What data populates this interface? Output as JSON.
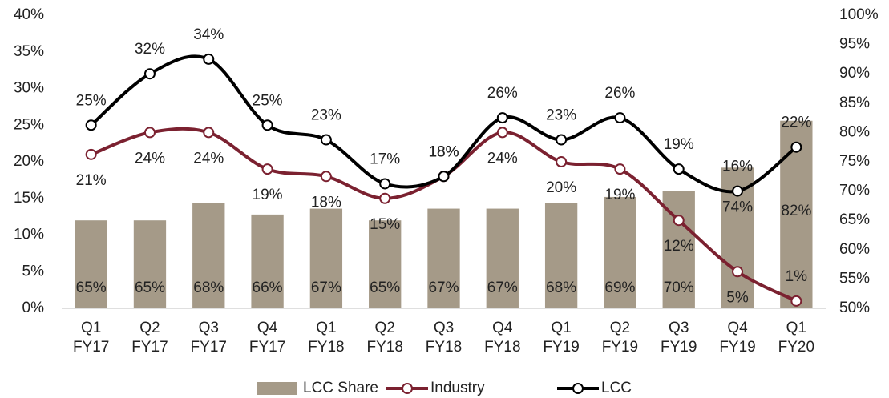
{
  "chart_data": {
    "type": "combo",
    "categories": [
      "Q1 FY17",
      "Q2 FY17",
      "Q3 FY17",
      "Q4 FY17",
      "Q1 FY18",
      "Q2 FY18",
      "Q3 FY18",
      "Q4 FY18",
      "Q1 FY19",
      "Q2 FY19",
      "Q3 FY19",
      "Q4 FY19",
      "Q1 FY20"
    ],
    "series": [
      {
        "name": "LCC Share",
        "type": "bar",
        "axis": "y2",
        "color": "#a59a88",
        "values": [
          65,
          65,
          68,
          66,
          67,
          65,
          67,
          67,
          68,
          69,
          70,
          74,
          82
        ],
        "value_labels": [
          "65%",
          "65%",
          "68%",
          "66%",
          "67%",
          "65%",
          "67%",
          "67%",
          "68%",
          "69%",
          "70%",
          "74%",
          "82%"
        ]
      },
      {
        "name": "Industry",
        "type": "line",
        "color": "#7b2130",
        "values": [
          21,
          24,
          24,
          19,
          18,
          15,
          18,
          24,
          20,
          19,
          12,
          5,
          1
        ],
        "value_labels": [
          "21%",
          "24%",
          "24%",
          "19%",
          "18%",
          "15%",
          "18%",
          "24%",
          "20%",
          "19%",
          "12%",
          "5%",
          "1%"
        ]
      },
      {
        "name": "LCC",
        "type": "line",
        "color": "#000000",
        "values": [
          25,
          32,
          34,
          25,
          23,
          17,
          18,
          26,
          23,
          26,
          19,
          16,
          22
        ],
        "value_labels": [
          "25%",
          "32%",
          "34%",
          "25%",
          "23%",
          "17%",
          "18%",
          "26%",
          "23%",
          "26%",
          "19%",
          "16%",
          "22%"
        ]
      }
    ],
    "ylim": [
      0,
      40
    ],
    "yticks": [
      {
        "value": 0,
        "label": "0%"
      },
      {
        "value": 5,
        "label": "5%"
      },
      {
        "value": 10,
        "label": "10%"
      },
      {
        "value": 15,
        "label": "15%"
      },
      {
        "value": 20,
        "label": "20%"
      },
      {
        "value": 25,
        "label": "25%"
      },
      {
        "value": 30,
        "label": "30%"
      },
      {
        "value": 35,
        "label": "35%"
      },
      {
        "value": 40,
        "label": "40%"
      }
    ],
    "y2lim": [
      50,
      100
    ],
    "y2ticks": [
      {
        "value": 50,
        "label": "50%"
      },
      {
        "value": 55,
        "label": "55%"
      },
      {
        "value": 60,
        "label": "60%"
      },
      {
        "value": 65,
        "label": "65%"
      },
      {
        "value": 70,
        "label": "70%"
      },
      {
        "value": 75,
        "label": "75%"
      },
      {
        "value": 80,
        "label": "80%"
      },
      {
        "value": 85,
        "label": "85%"
      },
      {
        "value": 90,
        "label": "90%"
      },
      {
        "value": 95,
        "label": "95%"
      },
      {
        "value": 100,
        "label": "100%"
      }
    ],
    "grid": false,
    "legend": "bottom"
  }
}
